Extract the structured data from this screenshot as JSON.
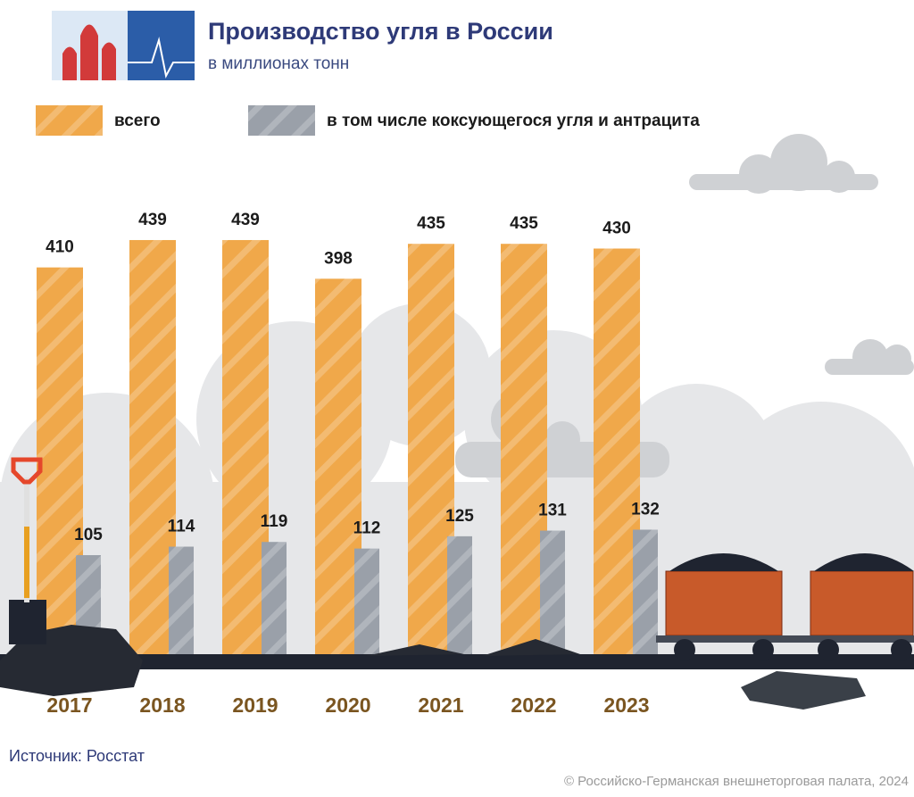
{
  "chart_data": {
    "type": "bar",
    "title": "Производство угля в России",
    "subtitle": "в миллионах тонн",
    "categories": [
      "2017",
      "2018",
      "2019",
      "2020",
      "2021",
      "2022",
      "2023"
    ],
    "series": [
      {
        "name": "всего",
        "color": "#f0a84a",
        "values": [
          410,
          439,
          439,
          398,
          435,
          435,
          430
        ]
      },
      {
        "name": "в том числе коксующегося угля и антрацита",
        "color": "#9aa0a9",
        "values": [
          105,
          114,
          119,
          112,
          125,
          131,
          132
        ]
      }
    ]
  },
  "footer": {
    "source": "Источник: Росстат",
    "copyright": "© Российско-Германская внешнеторговая палата, 2024"
  }
}
